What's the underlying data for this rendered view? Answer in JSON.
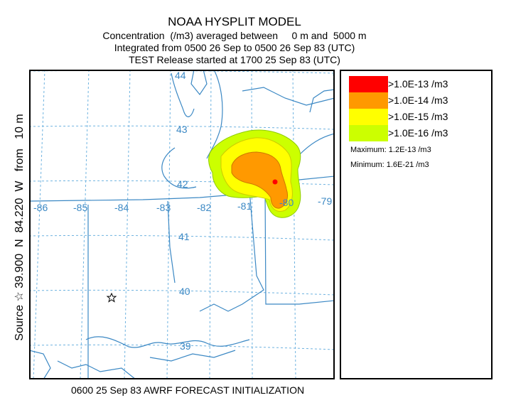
{
  "title": "NOAA HYSPLIT MODEL",
  "subtitle_lines": [
    "Concentration  (/m3) averaged between     0 m and  5000 m",
    "Integrated from 0500 26 Sep to 0500 26 Sep 83 (UTC)",
    "TEST Release started at 1700 25 Sep 83 (UTC)"
  ],
  "source_label": "Source ☆ 39.900  N  84.220  W   from   10 m",
  "footer": "0600 25 Sep 83 AWRF FORECAST INITIALIZATION",
  "colors": {
    "level1": "#ff0000",
    "level2": "#ff9900",
    "level3": "#ffff00",
    "level4": "#ccff00",
    "gridlines": "#6fb3e0",
    "borders": "#3b88c4"
  },
  "map": {
    "lat_labels": [
      "44",
      "43",
      "42",
      "41",
      "40",
      "39"
    ],
    "lon_labels": [
      "-86",
      "-85",
      "-84",
      "-83",
      "-82",
      "-81",
      "-80",
      "-79"
    ],
    "source_marker": "star-icon",
    "peak_marker": "red-dot"
  },
  "legend": {
    "entries": [
      {
        "label": ">1.0E-13 /m3",
        "color": "#ff0000"
      },
      {
        "label": ">1.0E-14 /m3",
        "color": "#ff9900"
      },
      {
        "label": ">1.0E-15 /m3",
        "color": "#ffff00"
      },
      {
        "label": ">1.0E-16 /m3",
        "color": "#ccff00"
      }
    ],
    "maximum": "Maximum: 1.2E-13 /m3",
    "minimum": "Minimum:  1.6E-21 /m3"
  }
}
